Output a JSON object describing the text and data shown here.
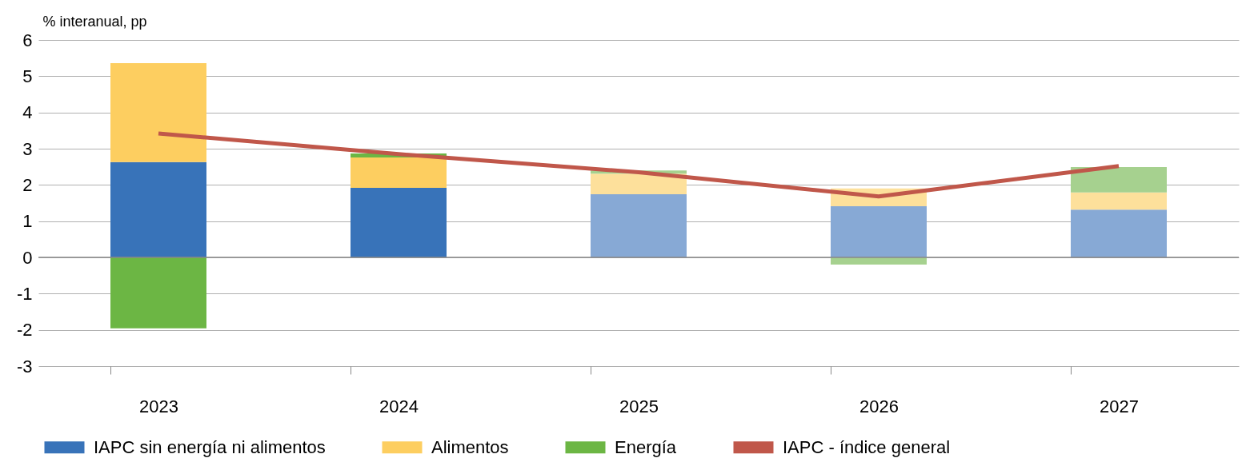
{
  "chart_data": {
    "type": "bar",
    "stacked": true,
    "ylabel": "% interanual, pp",
    "categories": [
      "2023",
      "2024",
      "2025",
      "2026",
      "2027"
    ],
    "ylim": [
      -3,
      6
    ],
    "yticks": [
      -3,
      -2,
      -1,
      0,
      1,
      2,
      3,
      4,
      5,
      6
    ],
    "grid": "y",
    "legend": "bottom",
    "series": [
      {
        "name": "IAPC sin energía ni alimentos",
        "color": "#3873b9",
        "colors": [
          "#3873b9",
          "#3873b9",
          "#87a9d5",
          "#87a9d5",
          "#87a9d5"
        ],
        "values": [
          2.63,
          1.92,
          1.74,
          1.41,
          1.32
        ]
      },
      {
        "name": "Alimentos",
        "color": "#fdce60",
        "colors": [
          "#fdce60",
          "#fdce60",
          "#fde09b",
          "#fde09b",
          "#fde09b"
        ],
        "values": [
          2.73,
          0.84,
          0.57,
          0.49,
          0.47
        ]
      },
      {
        "name": "Energía",
        "color": "#6cb644",
        "colors": [
          "#6cb644",
          "#6cb644",
          "#a6d18f",
          "#a6d18f",
          "#a6d18f"
        ],
        "values": [
          -1.96,
          0.11,
          0.09,
          -0.2,
          0.7
        ]
      },
      {
        "name": "IAPC - índice general",
        "type": "line",
        "color": "#c0574a",
        "values": [
          3.42,
          2.85,
          2.35,
          1.68,
          2.52
        ]
      }
    ]
  }
}
